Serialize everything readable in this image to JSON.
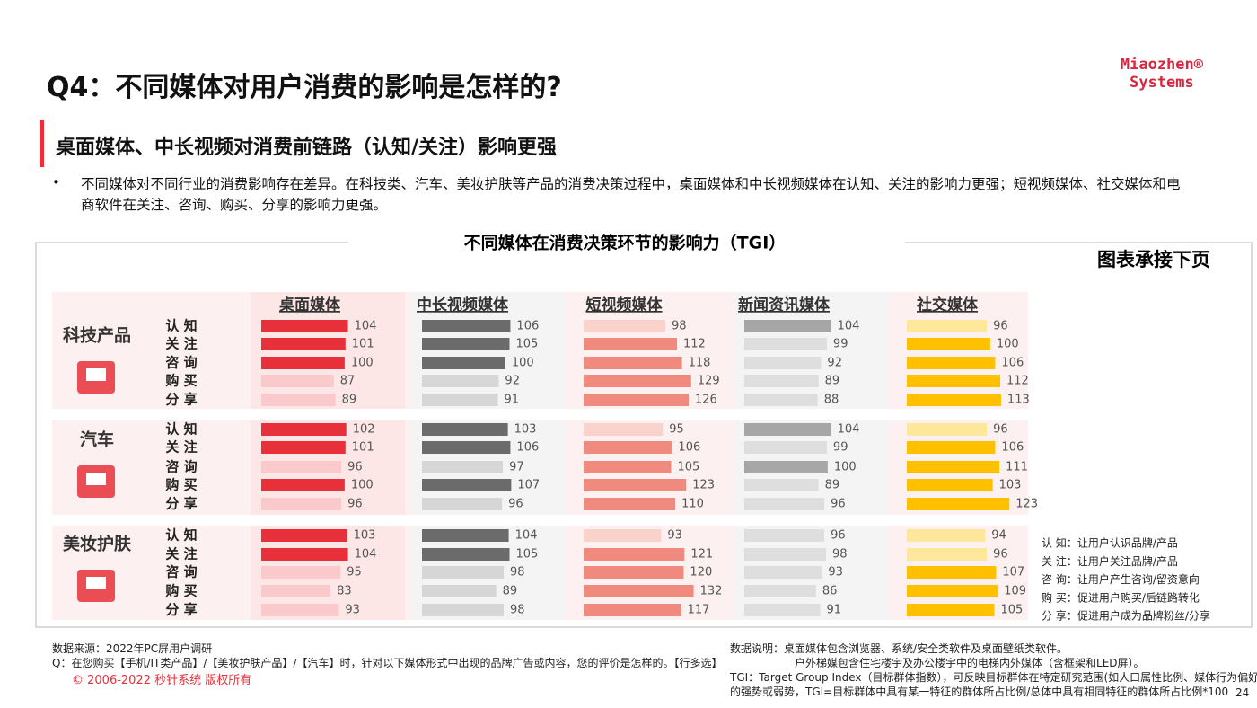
{
  "title": "Q4：不同媒体对用户消费的影响是怎样的?",
  "logo": [
    "Miaozhen®",
    "Systems"
  ],
  "subtitle": "桌面媒体、中长视频对消费前链路（认知/关注）影响更强",
  "bullet": "不同媒体对不同行业的消费影响存在差异。在科技类、汽车、美妆护肤等产品的消费决策过程中，桌面媒体和中长视频媒体在认知、关注的影响力更强；短视频媒体、社交媒体和电商软件在关注、咨询、购买、分享的影响力更强。",
  "chart_data": {
    "type": "bar",
    "title": "不同媒体在消费决策环节的影响力（TGI）",
    "note": "图表承接下页",
    "groups": [
      "科技产品",
      "汽车",
      "美妆护肤"
    ],
    "stages": [
      "认 知",
      "关 注",
      "咨 询",
      "购 买",
      "分 享"
    ],
    "xlim": [
      0,
      140
    ],
    "series": [
      {
        "name": "桌面媒体",
        "values": [
          [
            104,
            101,
            100,
            87,
            89
          ],
          [
            102,
            101,
            96,
            100,
            96
          ],
          [
            103,
            104,
            95,
            83,
            93
          ]
        ],
        "colors": [
          [
            "#e8303a",
            "#e8303a",
            "#e8303a",
            "#f9c9cc",
            "#f9c9cc"
          ],
          [
            "#e8303a",
            "#e8303a",
            "#f9c9cc",
            "#e8303a",
            "#f9c9cc"
          ],
          [
            "#e8303a",
            "#e8303a",
            "#f9c9cc",
            "#f9c9cc",
            "#f9c9cc"
          ]
        ]
      },
      {
        "name": "中长视频媒体",
        "values": [
          [
            106,
            105,
            100,
            92,
            91
          ],
          [
            103,
            106,
            97,
            107,
            96
          ],
          [
            104,
            105,
            98,
            89,
            98
          ]
        ],
        "colors": [
          [
            "#6b6b6b",
            "#6b6b6b",
            "#6b6b6b",
            "#d6d6d6",
            "#d6d6d6"
          ],
          [
            "#6b6b6b",
            "#6b6b6b",
            "#d6d6d6",
            "#6b6b6b",
            "#d6d6d6"
          ],
          [
            "#6b6b6b",
            "#6b6b6b",
            "#d6d6d6",
            "#d6d6d6",
            "#d6d6d6"
          ]
        ]
      },
      {
        "name": "短视频媒体",
        "values": [
          [
            98,
            112,
            118,
            129,
            126
          ],
          [
            95,
            106,
            105,
            123,
            110
          ],
          [
            93,
            121,
            120,
            132,
            117
          ]
        ],
        "colors": [
          [
            "#f9d2cb",
            "#f08a7e",
            "#f08a7e",
            "#f08a7e",
            "#f08a7e"
          ],
          [
            "#f9d2cb",
            "#f08a7e",
            "#f08a7e",
            "#f08a7e",
            "#f08a7e"
          ],
          [
            "#f9d2cb",
            "#f08a7e",
            "#f08a7e",
            "#f08a7e",
            "#f08a7e"
          ]
        ]
      },
      {
        "name": "新闻资讯媒体",
        "values": [
          [
            104,
            99,
            92,
            89,
            88
          ],
          [
            104,
            99,
            100,
            89,
            96
          ],
          [
            96,
            98,
            93,
            86,
            91
          ]
        ],
        "colors": [
          [
            "#a6a6a6",
            "#dedede",
            "#dedede",
            "#dedede",
            "#dedede"
          ],
          [
            "#a6a6a6",
            "#dedede",
            "#a6a6a6",
            "#dedede",
            "#dedede"
          ],
          [
            "#dedede",
            "#dedede",
            "#dedede",
            "#dedede",
            "#dedede"
          ]
        ]
      },
      {
        "name": "社交媒体",
        "values": [
          [
            96,
            100,
            106,
            112,
            113
          ],
          [
            96,
            106,
            111,
            103,
            123
          ],
          [
            94,
            96,
            107,
            109,
            105
          ]
        ],
        "colors": [
          [
            "#fde79a",
            "#ffc000",
            "#ffc000",
            "#ffc000",
            "#ffc000"
          ],
          [
            "#fde79a",
            "#ffc000",
            "#ffc000",
            "#ffc000",
            "#ffc000"
          ],
          [
            "#fde79a",
            "#fde79a",
            "#ffc000",
            "#ffc000",
            "#ffc000"
          ]
        ]
      }
    ],
    "definitions": [
      "认 知：让用户认识品牌/产品",
      "关 注：让用户关注品牌/产品",
      "咨 询：让用户产生咨询/留资意向",
      "购 买：促进用户购买/后链路转化",
      "分 享：促进用户成为品牌粉丝/分享"
    ]
  },
  "footer": {
    "source": "数据来源：2022年PC屏用户调研",
    "question": "Q：在您购买【手机/IT类产品】/【美妆护肤产品】/【汽车】时，针对以下媒体形式中出现的品牌广告或内容，您的评价是怎样的。【行多选】",
    "copyright": "© 2006-2022 秒针系统 版权所有",
    "notes": [
      "数据说明：桌面媒体包含浏览器、系统/安全类软件及桌面壁纸类软件。",
      "户外梯媒包含住宅楼宇及办公楼宇中的电梯内外媒体（含框架和LED屏）。",
      "TGI：Target Group Index（目标群体指数），可反映目标群体在特定研究范围(如人口属性比例、媒体行为偏好)",
      "的强势或弱势，TGI=目标群体中具有某一特征的群体所占比例/总体中具有相同特征的群体所占比例*100"
    ],
    "page": "24"
  }
}
